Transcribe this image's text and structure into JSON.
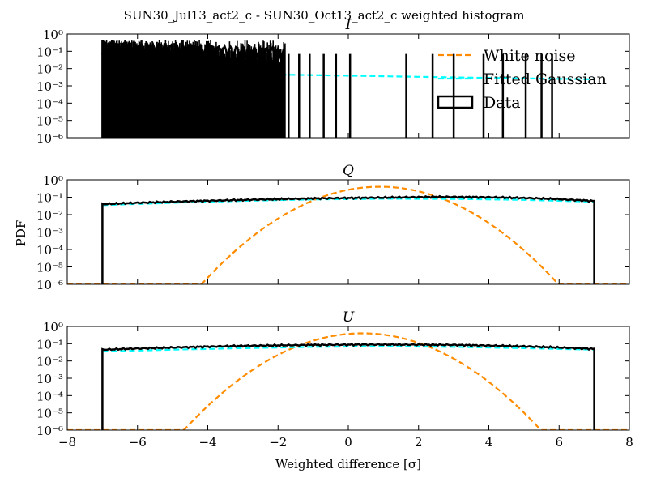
{
  "figure": {
    "title": "SUN30_Jul13_act2_c - SUN30_Oct13_act2_c weighted histogram",
    "xlabel": "Weighted difference [σ]",
    "ylabel": "PDF"
  },
  "colors": {
    "data": "#000000",
    "white_noise": "#ff8c00",
    "fitted_gaussian": "#00ffff"
  },
  "legend": {
    "placement": "upper-right of panel I",
    "items": [
      "White noise",
      "Fitted Gaussian",
      "Data"
    ]
  },
  "chart_data": [
    {
      "type": "line",
      "panel": "I",
      "title": "I",
      "xlim": [
        -8,
        8
      ],
      "ylim": [
        1e-06,
        1
      ],
      "yscale": "log",
      "xticks": [
        -8,
        -6,
        -4,
        -2,
        0,
        2,
        4,
        6,
        8
      ],
      "yticks_exp": [
        0,
        -1,
        -2,
        -3,
        -4,
        -5,
        -6
      ],
      "series": [
        {
          "name": "Fitted Gaussian",
          "style": "dashed",
          "x": [
            -7.0,
            -5.0,
            -3.0,
            -1.0,
            1.0,
            3.0,
            5.0,
            7.0
          ],
          "y": [
            0.0065,
            0.0055,
            0.0048,
            0.0042,
            0.0036,
            0.0031,
            0.0027,
            0.0024
          ]
        },
        {
          "name": "Data",
          "style": "histogram",
          "dense_region": [
            -7.0,
            -1.8
          ],
          "dense_top": 0.45,
          "spikes_x": [
            -7.0,
            -6.7,
            -6.35,
            -6.1,
            -5.75,
            -5.45,
            -5.2,
            -4.95,
            -4.7,
            -4.45,
            -4.2,
            -4.0,
            -3.8,
            -3.6,
            -3.4,
            -3.25,
            -3.1,
            -2.95,
            -2.8,
            -2.65,
            -2.5,
            -2.35,
            -2.2,
            -2.05,
            -1.9,
            -1.7,
            -1.4,
            -1.1,
            -0.7,
            -0.35,
            0.05,
            1.65,
            2.4,
            3.0,
            3.85,
            4.4,
            5.05,
            5.5,
            5.8
          ],
          "spikes_y": [
            0.45,
            0.45,
            0.45,
            0.4,
            0.38,
            0.35,
            0.3,
            0.3,
            0.25,
            0.25,
            0.2,
            0.2,
            0.15,
            0.15,
            0.12,
            0.1,
            0.1,
            0.08,
            0.08,
            0.08,
            0.08,
            0.08,
            0.08,
            0.08,
            0.08,
            0.07,
            0.07,
            0.07,
            0.07,
            0.07,
            0.07,
            0.07,
            0.07,
            0.07,
            0.07,
            0.07,
            0.07,
            0.07,
            0.07
          ]
        }
      ]
    },
    {
      "type": "line",
      "panel": "Q",
      "title": "Q",
      "xlim": [
        -8,
        8
      ],
      "ylim": [
        1e-06,
        1
      ],
      "yscale": "log",
      "xticks": [
        -8,
        -6,
        -4,
        -2,
        0,
        2,
        4,
        6,
        8
      ],
      "yticks_exp": [
        0,
        -1,
        -2,
        -3,
        -4,
        -5,
        -6
      ],
      "series": [
        {
          "name": "White noise",
          "style": "dashed",
          "gaussian": {
            "mu": 0.9,
            "sigma": 1.0,
            "peak": 0.4
          },
          "x_range": [
            -8,
            8
          ]
        },
        {
          "name": "Fitted Gaussian",
          "style": "dashed",
          "x": [
            -7.0,
            -5.0,
            -3.0,
            -1.0,
            1.0,
            3.0,
            5.0,
            7.0
          ],
          "y": [
            0.035,
            0.048,
            0.062,
            0.075,
            0.082,
            0.08,
            0.07,
            0.055
          ]
        },
        {
          "name": "Data",
          "style": "histogram",
          "x": [
            -7.0,
            -5.0,
            -3.0,
            -1.0,
            1.0,
            2.5,
            4.0,
            5.5,
            7.0
          ],
          "y": [
            0.04,
            0.055,
            0.07,
            0.085,
            0.095,
            0.105,
            0.1,
            0.085,
            0.06
          ]
        }
      ]
    },
    {
      "type": "line",
      "panel": "U",
      "title": "U",
      "xlim": [
        -8,
        8
      ],
      "ylim": [
        1e-06,
        1
      ],
      "yscale": "log",
      "xticks": [
        -8,
        -6,
        -4,
        -2,
        0,
        2,
        4,
        6,
        8
      ],
      "yticks_exp": [
        0,
        -1,
        -2,
        -3,
        -4,
        -5,
        -6
      ],
      "series": [
        {
          "name": "White noise",
          "style": "dashed",
          "gaussian": {
            "mu": 0.4,
            "sigma": 1.0,
            "peak": 0.4
          },
          "x_range": [
            -8,
            8
          ]
        },
        {
          "name": "Fitted Gaussian",
          "style": "dashed",
          "x": [
            -7.0,
            -5.0,
            -3.0,
            -1.0,
            1.0,
            3.0,
            5.0,
            7.0
          ],
          "y": [
            0.035,
            0.045,
            0.055,
            0.065,
            0.07,
            0.065,
            0.055,
            0.045
          ]
        },
        {
          "name": "Data",
          "style": "histogram",
          "x": [
            -7.0,
            -5.0,
            -3.0,
            -1.0,
            1.0,
            3.0,
            5.0,
            7.0
          ],
          "y": [
            0.045,
            0.06,
            0.075,
            0.085,
            0.09,
            0.085,
            0.07,
            0.05
          ]
        }
      ]
    }
  ]
}
